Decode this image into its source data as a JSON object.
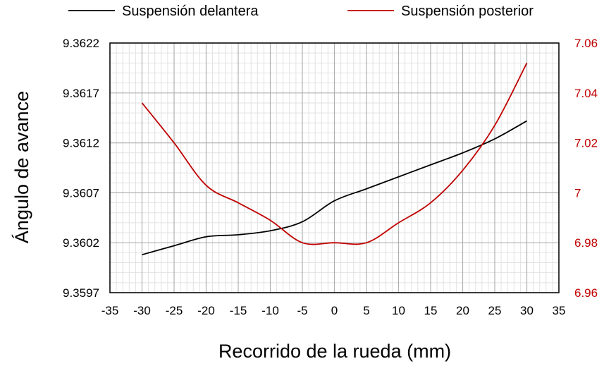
{
  "chart_data": {
    "type": "line",
    "title": "",
    "xlabel": "Recorrido de la rueda  (mm)",
    "ylabel_left": "Ángulo de avance",
    "ylabel_right": "",
    "xlim": [
      -35,
      35
    ],
    "xticks": [
      -35,
      -30,
      -25,
      -20,
      -15,
      -10,
      -5,
      0,
      5,
      10,
      15,
      20,
      25,
      30,
      35
    ],
    "xtick_labels": [
      "-35",
      "-30",
      "-25",
      "-20",
      "-15",
      "-10",
      "-5",
      "0",
      "5",
      "10",
      "15",
      "20",
      "25",
      "30",
      "35"
    ],
    "ylim_left": [
      9.3597,
      9.3622
    ],
    "yticks_left": [
      9.3597,
      9.3602,
      9.3607,
      9.3612,
      9.3617,
      9.3622
    ],
    "ytick_labels_left": [
      "9.3597",
      "9.3602",
      "9.3607",
      "9.3612",
      "9.3617",
      "9.3622"
    ],
    "ylim_right": [
      6.96,
      7.06
    ],
    "yticks_right": [
      6.96,
      6.98,
      7.0,
      7.02,
      7.04,
      7.06
    ],
    "ytick_labels_right": [
      "6.96",
      "6.98",
      "7",
      "7.02",
      "7.04",
      "7.06"
    ],
    "grid": true,
    "legend_position": "top",
    "series": [
      {
        "name": "Suspensión delantera",
        "color": "#000000",
        "axis": "left",
        "x": [
          -30,
          -25,
          -20,
          -15,
          -10,
          -5,
          0,
          5,
          10,
          15,
          20,
          25,
          30
        ],
        "y": [
          9.36008,
          9.36017,
          9.36026,
          9.36028,
          9.36032,
          9.36041,
          9.36062,
          9.36074,
          9.36086,
          9.36098,
          9.3611,
          9.36124,
          9.36142
        ]
      },
      {
        "name": "Suspensión posterior",
        "color": "#c00000",
        "axis": "right",
        "x": [
          -30,
          -25,
          -20,
          -15,
          -10,
          -5,
          0,
          5,
          10,
          15,
          20,
          25,
          30
        ],
        "y": [
          7.036,
          7.02,
          7.003,
          6.996,
          6.989,
          6.98,
          6.98,
          6.98,
          6.988,
          6.996,
          7.009,
          7.027,
          7.052
        ]
      }
    ]
  }
}
